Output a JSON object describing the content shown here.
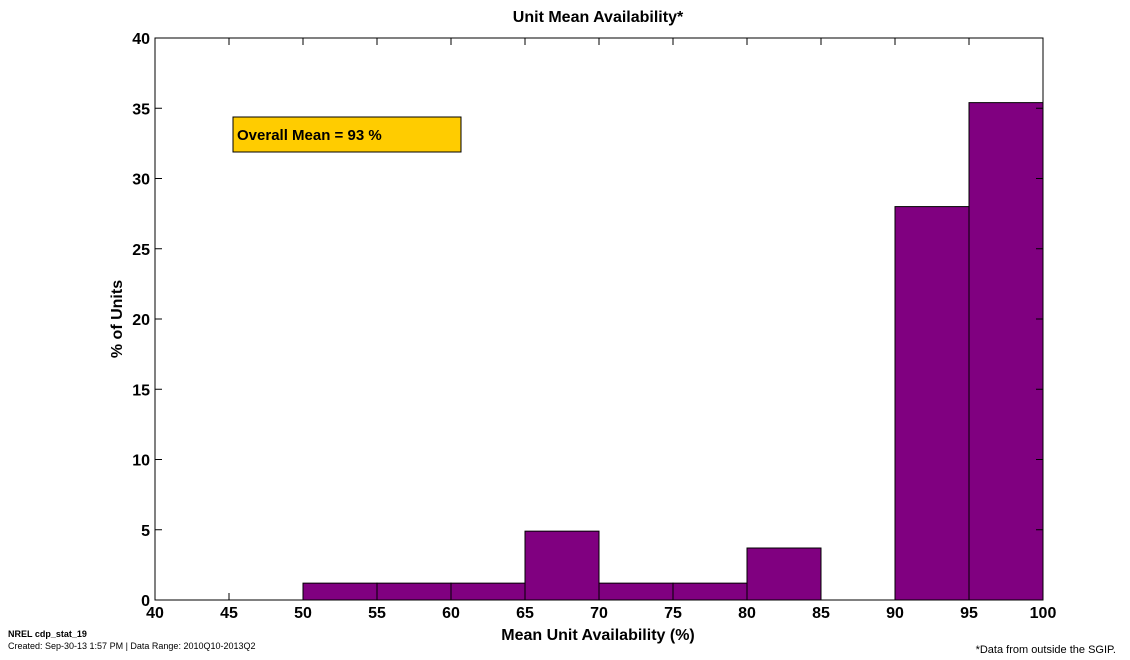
{
  "chart_data": {
    "type": "bar",
    "title": "Unit Mean Availability*",
    "xlabel": "Mean Unit Availability (%)",
    "ylabel": "% of Units",
    "xlim": [
      40,
      100
    ],
    "ylim": [
      0,
      40
    ],
    "xticks": [
      40,
      45,
      50,
      55,
      60,
      65,
      70,
      75,
      80,
      85,
      90,
      95,
      100
    ],
    "yticks": [
      0,
      5,
      10,
      15,
      20,
      25,
      30,
      35,
      40
    ],
    "grid": false,
    "bar_color": "#800080",
    "bins": [
      {
        "x0": 50,
        "x1": 55,
        "value": 1.2
      },
      {
        "x0": 55,
        "x1": 60,
        "value": 1.2
      },
      {
        "x0": 60,
        "x1": 65,
        "value": 1.2
      },
      {
        "x0": 65,
        "x1": 70,
        "value": 4.9
      },
      {
        "x0": 70,
        "x1": 75,
        "value": 1.2
      },
      {
        "x0": 75,
        "x1": 80,
        "value": 1.2
      },
      {
        "x0": 80,
        "x1": 85,
        "value": 3.7
      },
      {
        "x0": 90,
        "x1": 95,
        "value": 28.0
      },
      {
        "x0": 95,
        "x1": 100,
        "value": 35.4
      }
    ],
    "annotation": {
      "text": "Overall Mean = 93 %",
      "color": "#FFCC00"
    }
  },
  "footer": {
    "id": "NREL cdp_stat_19",
    "created": "Created: Sep-30-13  1:57 PM | Data Range: 2010Q10-2013Q2",
    "note": "*Data from outside the SGIP."
  }
}
